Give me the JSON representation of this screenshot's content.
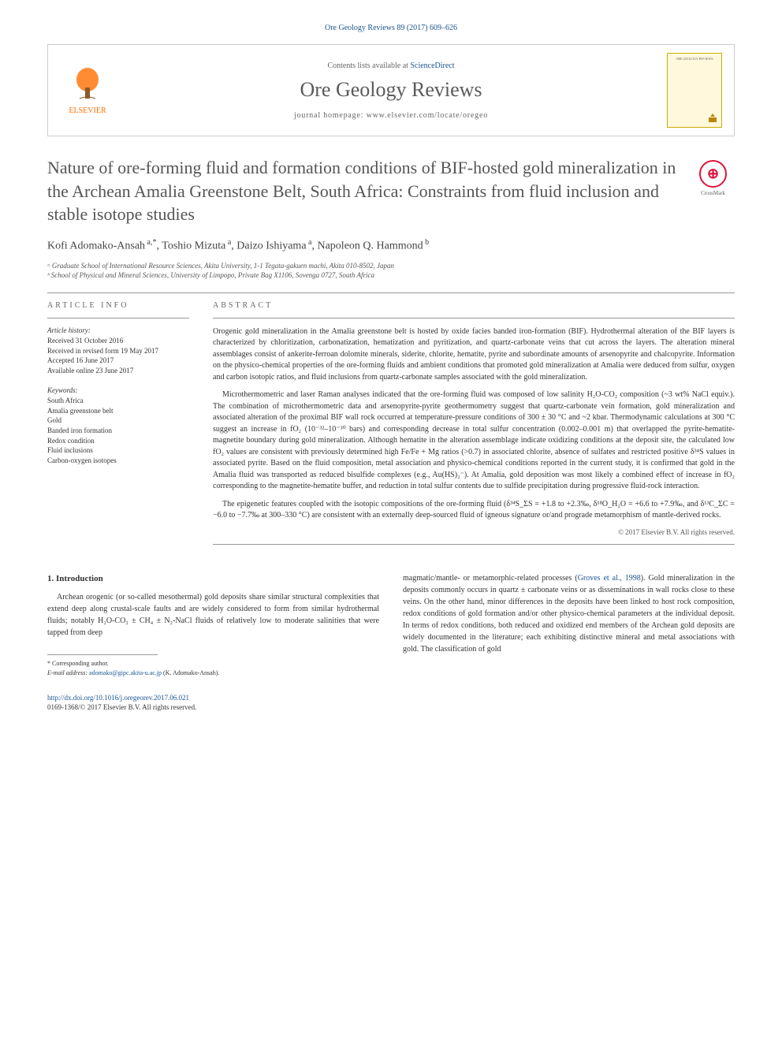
{
  "citation": "Ore Geology Reviews 89 (2017) 609–626",
  "header": {
    "contents_prefix": "Contents lists available at ",
    "contents_link": "ScienceDirect",
    "journal_title": "Ore Geology Reviews",
    "homepage_prefix": "journal homepage: ",
    "homepage_url": "www.elsevier.com/locate/oregeo",
    "publisher": "ELSEVIER",
    "cover_title": "ORE GEOLOGY REVIEWS"
  },
  "crossmark_label": "CrossMark",
  "article": {
    "title": "Nature of ore-forming fluid and formation conditions of BIF-hosted gold mineralization in the Archean Amalia Greenstone Belt, South Africa: Constraints from fluid inclusion and stable isotope studies",
    "authors_parts": [
      {
        "name": "Kofi Adomako-Ansah",
        "aff": "a,",
        "corr": "*"
      },
      {
        "name": ", Toshio Mizuta",
        "aff": "a"
      },
      {
        "name": ", Daizo Ishiyama",
        "aff": "a"
      },
      {
        "name": ", Napoleon Q. Hammond",
        "aff": "b"
      }
    ],
    "affiliations": [
      "ᵃ Graduate School of International Resource Sciences, Akita University, 1-1 Tegata-gakuen machi, Akita 010-8502, Japan",
      "ᵇ School of Physical and Mineral Sciences, University of Limpopo, Private Bag X1106, Sovenga 0727, South Africa"
    ]
  },
  "article_info": {
    "heading": "ARTICLE INFO",
    "history_label": "Article history:",
    "history": [
      "Received 31 October 2016",
      "Received in revised form 19 May 2017",
      "Accepted 16 June 2017",
      "Available online 23 June 2017"
    ],
    "keywords_label": "Keywords:",
    "keywords": [
      "South Africa",
      "Amalia greenstone belt",
      "Gold",
      "Banded iron formation",
      "Redox condition",
      "Fluid inclusions",
      "Carbon-oxygen isotopes"
    ]
  },
  "abstract": {
    "heading": "ABSTRACT",
    "paragraphs": [
      "Orogenic gold mineralization in the Amalia greenstone belt is hosted by oxide facies banded iron-formation (BIF). Hydrothermal alteration of the BIF layers is characterized by chloritization, carbonatization, hematization and pyritization, and quartz-carbonate veins that cut across the layers. The alteration mineral assemblages consist of ankerite-ferroan dolomite minerals, siderite, chlorite, hematite, pyrite and subordinate amounts of arsenopyrite and chalcopyrite. Information on the physico-chemical properties of the ore-forming fluids and ambient conditions that promoted gold mineralization at Amalia were deduced from sulfur, oxygen and carbon isotopic ratios, and fluid inclusions from quartz-carbonate samples associated with the gold mineralization.",
      "Microthermometric and laser Raman analyses indicated that the ore-forming fluid was composed of low salinity H₂O-CO₂ composition (~3 wt% NaCl equiv.). The combination of microthermometric data and arsenopyrite-pyrite geothermometry suggest that quartz-carbonate vein formation, gold mineralization and associated alteration of the proximal BIF wall rock occurred at temperature-pressure conditions of 300 ± 30 °C and ~2 kbar. Thermodynamic calculations at 300 °C suggest an increase in fO₂ (10⁻³²–10⁻³⁰ bars) and corresponding decrease in total sulfur concentration (0.002–0.001 m) that overlapped the pyrite-hematite-magnetite boundary during gold mineralization. Although hematite in the alteration assemblage indicate oxidizing conditions at the deposit site, the calculated low fO₂ values are consistent with previously determined high Fe/Fe + Mg ratios (>0.7) in associated chlorite, absence of sulfates and restricted positive δ³⁴S values in associated pyrite. Based on the fluid composition, metal association and physico-chemical conditions reported in the current study, it is confirmed that gold in the Amalia fluid was transported as reduced bisulfide complexes (e.g., Au(HS)₂⁻). At Amalia, gold deposition was most likely a combined effect of increase in fO₂ corresponding to the magnetite-hematite buffer, and reduction in total sulfur contents due to sulfide precipitation during progressive fluid-rock interaction.",
      "The epigenetic features coupled with the isotopic compositions of the ore-forming fluid (δ³⁴S_ΣS = +1.8 to +2.3‰, δ¹⁸O_H₂O = +6.6 to +7.9‰, and δ¹³C_ΣC = −6.0 to −7.7‰ at 300–330 °C) are consistent with an externally deep-sourced fluid of igneous signature or/and prograde metamorphism of mantle-derived rocks."
    ],
    "copyright": "© 2017 Elsevier B.V. All rights reserved."
  },
  "body": {
    "section_heading": "1. Introduction",
    "col1": "Archean orogenic (or so-called mesothermal) gold deposits share similar structural complexities that extend deep along crustal-scale faults and are widely considered to form from similar hydrothermal fluids; notably H₂O-CO₂ ± CH₄ ± N₂-NaCl fluids of relatively low to moderate salinities that were tapped from deep",
    "col2_pre": "magmatic/mantle- or metamorphic-related processes (",
    "col2_cite": "Groves et al., 1998",
    "col2_post": "). Gold mineralization in the deposits commonly occurs in quartz ± carbonate veins or as disseminations in wall rocks close to these veins. On the other hand, minor differences in the deposits have been linked to host rock composition, redox conditions of gold formation and/or other physico-chemical parameters at the individual deposit. In terms of redox conditions, both reduced and oxidized end members of the Archean gold deposits are widely documented in the literature; each exhibiting distinctive mineral and metal associations with gold. The classification of gold"
  },
  "footnote": {
    "corr_label": "* Corresponding author.",
    "email_label": "E-mail address: ",
    "email": "adomako@gipc.akita-u.ac.jp",
    "email_suffix": " (K. Adomako-Ansah)."
  },
  "footer": {
    "doi": "http://dx.doi.org/10.1016/j.oregeorev.2017.06.021",
    "issn_line": "0169-1368/© 2017 Elsevier B.V. All rights reserved."
  },
  "colors": {
    "link": "#1a5490",
    "elsevier_orange": "#ff6c00",
    "crossmark_red": "#dc143c",
    "text": "#333333",
    "heading_gray": "#555555"
  }
}
